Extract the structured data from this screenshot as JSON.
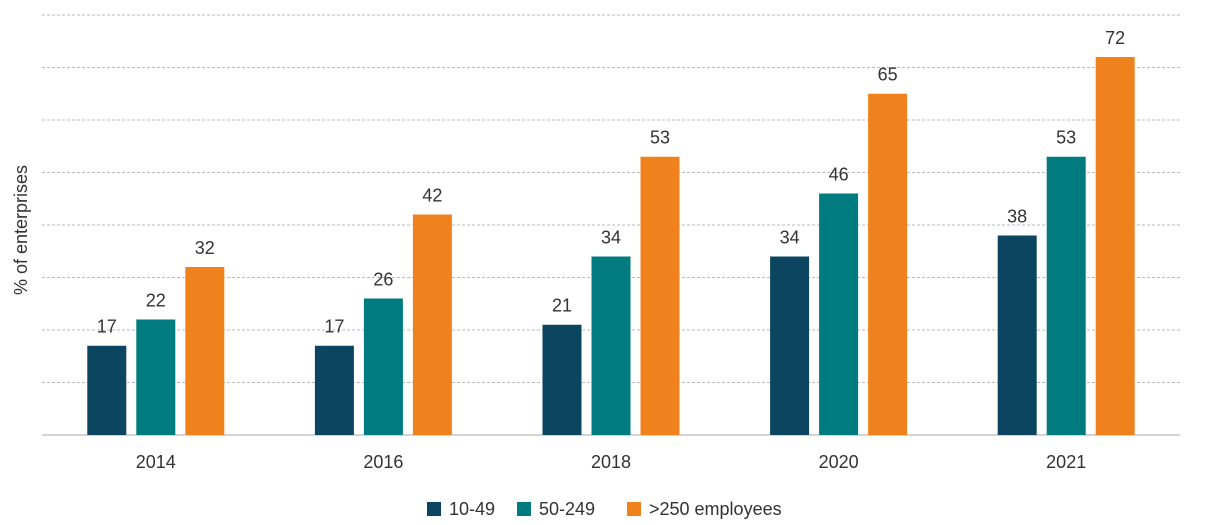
{
  "chart_data": {
    "type": "bar",
    "ylabel": "% of enterprises",
    "categories": [
      "2014",
      "2016",
      "2018",
      "2020",
      "2021"
    ],
    "series": [
      {
        "name": "10-49",
        "color": "#0b4560",
        "values": [
          17,
          17,
          21,
          34,
          38
        ]
      },
      {
        "name": "50-249",
        "color": "#007b80",
        "values": [
          22,
          26,
          34,
          46,
          53
        ]
      },
      {
        "name": ">250 employees",
        "color": "#f0821e",
        "values": [
          32,
          42,
          53,
          65,
          72
        ]
      }
    ],
    "ylim": [
      0,
      80
    ],
    "yticks": [
      0,
      10,
      20,
      30,
      40,
      50,
      60,
      70,
      80
    ],
    "grid": true,
    "legend": "bottom"
  }
}
